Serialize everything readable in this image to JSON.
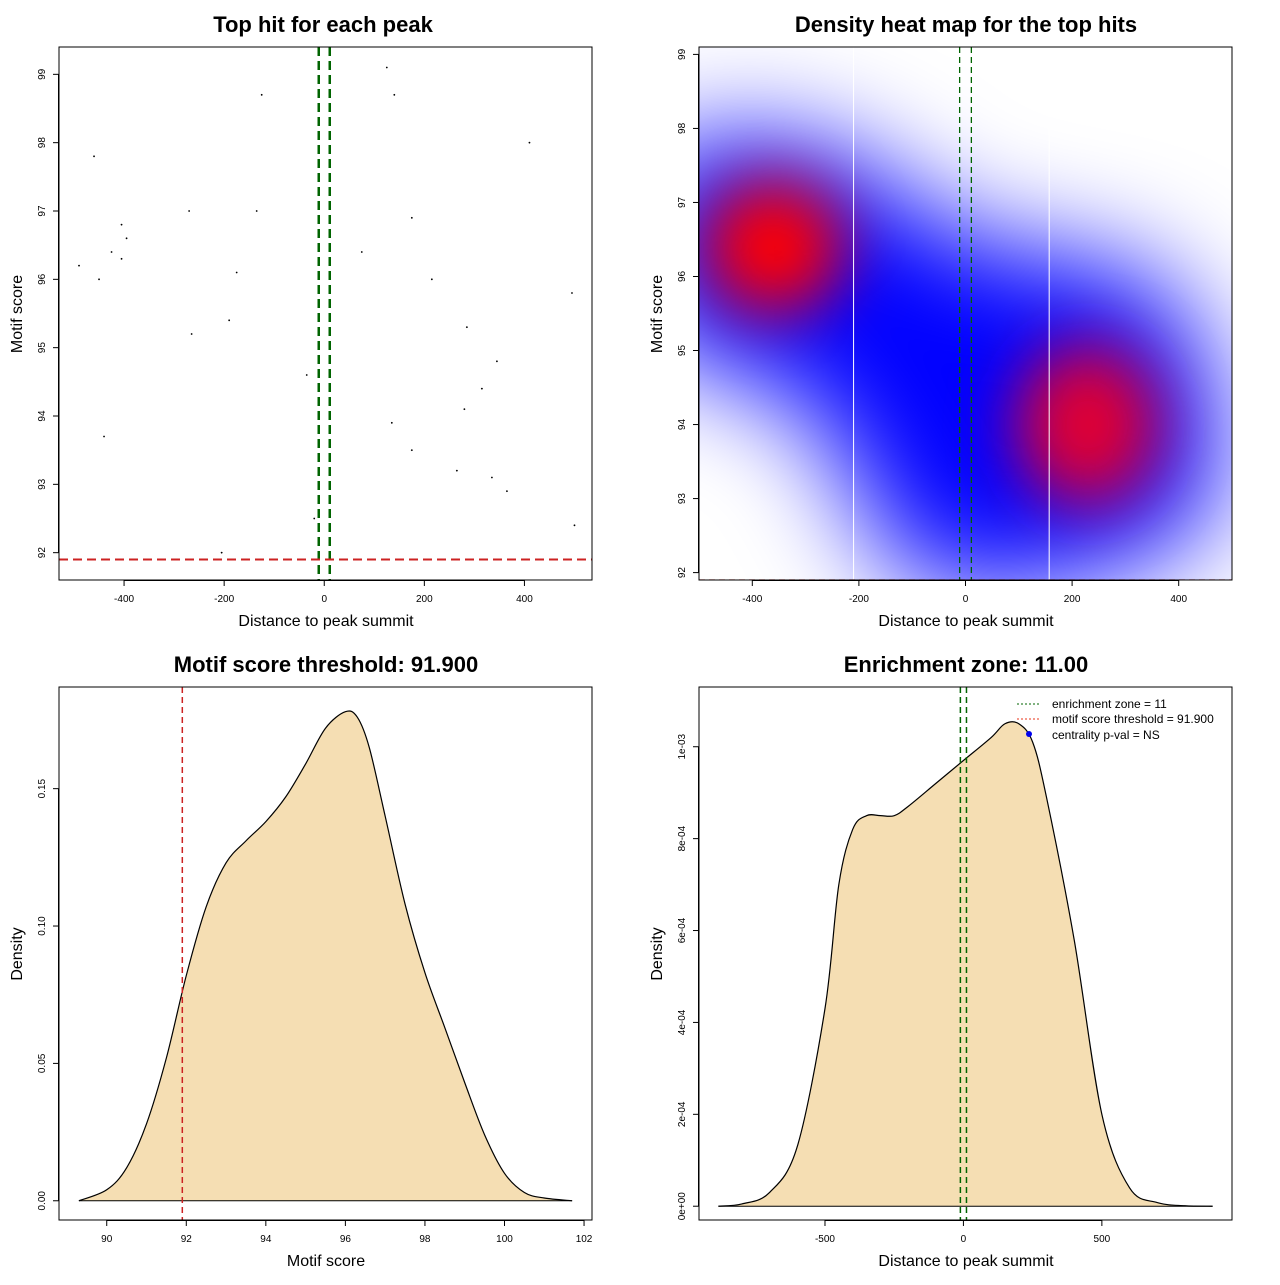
{
  "chart_data": [
    {
      "id": "scatter",
      "type": "scatter",
      "title": "Top hit for each peak",
      "xlabel": "Distance to peak summit",
      "ylabel": "Motif score",
      "xlim": [
        -530,
        535
      ],
      "ylim": [
        91.6,
        99.4
      ],
      "xticks": [
        -400,
        -200,
        0,
        200,
        400
      ],
      "xtick_labels": [
        "-400",
        "-200",
        "0",
        "200",
        "400"
      ],
      "yticks": [
        92,
        93,
        94,
        95,
        96,
        97,
        98,
        99
      ],
      "ytick_labels": [
        "92",
        "93",
        "94",
        "95",
        "96",
        "97",
        "98",
        "99"
      ],
      "points": [
        {
          "x": 125,
          "y": 99.1
        },
        {
          "x": -125,
          "y": 98.7
        },
        {
          "x": 140,
          "y": 98.7
        },
        {
          "x": -460,
          "y": 97.8
        },
        {
          "x": 410,
          "y": 98.0
        },
        {
          "x": -270,
          "y": 97.0
        },
        {
          "x": -135,
          "y": 97.0
        },
        {
          "x": 175,
          "y": 96.9
        },
        {
          "x": -405,
          "y": 96.8
        },
        {
          "x": -395,
          "y": 96.6
        },
        {
          "x": -425,
          "y": 96.4
        },
        {
          "x": -405,
          "y": 96.3
        },
        {
          "x": 75,
          "y": 96.4
        },
        {
          "x": -490,
          "y": 96.2
        },
        {
          "x": -175,
          "y": 96.1
        },
        {
          "x": -450,
          "y": 96.0
        },
        {
          "x": 215,
          "y": 96.0
        },
        {
          "x": 495,
          "y": 95.8
        },
        {
          "x": -190,
          "y": 95.4
        },
        {
          "x": 285,
          "y": 95.3
        },
        {
          "x": -265,
          "y": 95.2
        },
        {
          "x": 345,
          "y": 94.8
        },
        {
          "x": -35,
          "y": 94.6
        },
        {
          "x": 315,
          "y": 94.4
        },
        {
          "x": 280,
          "y": 94.1
        },
        {
          "x": 135,
          "y": 93.9
        },
        {
          "x": -440,
          "y": 93.7
        },
        {
          "x": 175,
          "y": 93.5
        },
        {
          "x": 265,
          "y": 93.2
        },
        {
          "x": 335,
          "y": 93.1
        },
        {
          "x": 365,
          "y": 92.9
        },
        {
          "x": -20,
          "y": 92.5
        },
        {
          "x": 500,
          "y": 92.4
        },
        {
          "x": -205,
          "y": 92.0
        }
      ],
      "vlines": [
        -11,
        11
      ],
      "hline": 91.9
    },
    {
      "id": "heatmap",
      "type": "heatmap",
      "title": "Density heat map for the top hits",
      "xlabel": "Distance to peak summit",
      "ylabel": "Motif score",
      "xlim": [
        -500,
        500
      ],
      "ylim": [
        91.9,
        99.1
      ],
      "xticks": [
        -400,
        -200,
        0,
        200,
        400
      ],
      "xtick_labels": [
        "-400",
        "-200",
        "0",
        "200",
        "400"
      ],
      "yticks": [
        92,
        93,
        94,
        95,
        96,
        97,
        98,
        99
      ],
      "ytick_labels": [
        "92",
        "93",
        "94",
        "95",
        "96",
        "97",
        "98",
        "99"
      ],
      "hotspots": [
        {
          "x": -360,
          "y": 96.4,
          "level": "high"
        },
        {
          "x": 230,
          "y": 94.0,
          "level": "high"
        }
      ],
      "white_vlines": [
        -210,
        157
      ],
      "vlines": [
        -11,
        11
      ],
      "hline": 91.9
    },
    {
      "id": "score-density",
      "type": "area",
      "title": "Motif score threshold: 91.900",
      "xlabel": "Motif score",
      "ylabel": "Density",
      "xlim": [
        88.8,
        102.2
      ],
      "ylim": [
        -0.007,
        0.187
      ],
      "xticks": [
        90,
        92,
        94,
        96,
        98,
        100,
        102
      ],
      "xtick_labels": [
        "90",
        "92",
        "94",
        "96",
        "98",
        "100",
        "102"
      ],
      "yticks": [
        0,
        0.05,
        0.1,
        0.15
      ],
      "ytick_labels": [
        "0.00",
        "0.05",
        "0.10",
        "0.15"
      ],
      "x": [
        89.3,
        90.0,
        90.5,
        91.0,
        91.5,
        92.0,
        92.5,
        93.0,
        93.5,
        94.0,
        94.5,
        95.0,
        95.5,
        96.0,
        96.3,
        96.6,
        97.0,
        97.5,
        98.0,
        98.5,
        99.0,
        99.5,
        100.0,
        100.5,
        101.0,
        101.7
      ],
      "y": [
        0.0,
        0.004,
        0.012,
        0.028,
        0.052,
        0.082,
        0.107,
        0.123,
        0.131,
        0.138,
        0.147,
        0.159,
        0.172,
        0.178,
        0.176,
        0.165,
        0.14,
        0.108,
        0.083,
        0.063,
        0.043,
        0.024,
        0.01,
        0.003,
        0.001,
        0.0
      ],
      "threshold_line": 91.9
    },
    {
      "id": "distance-density",
      "type": "area",
      "title": "Enrichment zone: 11.00",
      "xlabel": "Distance to peak summit",
      "ylabel": "Density",
      "xlim": [
        -955,
        970
      ],
      "ylim": [
        -3e-05,
        0.00113
      ],
      "xticks": [
        -500,
        0,
        500
      ],
      "xtick_labels": [
        "-500",
        "0",
        "500"
      ],
      "yticks": [
        0,
        0.0002,
        0.0004,
        0.0006,
        0.0008,
        0.001
      ],
      "ytick_labels": [
        "0e+00",
        "2e-04",
        "4e-04",
        "6e-04",
        "8e-04",
        "1e-03"
      ],
      "x": [
        -885,
        -800,
        -700,
        -600,
        -500,
        -450,
        -400,
        -350,
        -300,
        -250,
        -200,
        -100,
        0,
        100,
        150,
        200,
        250,
        300,
        400,
        500,
        600,
        700,
        800,
        900
      ],
      "y": [
        0.0,
        5e-06,
        3e-05,
        0.00013,
        0.00043,
        0.0007,
        0.00082,
        0.00085,
        0.00085,
        0.00085,
        0.00087,
        0.00092,
        0.00097,
        0.00102,
        0.00105,
        0.00105,
        0.00101,
        0.00089,
        0.00058,
        0.0002,
        4e-05,
        8e-06,
        1e-06,
        0.0
      ],
      "vlines": [
        -11,
        11
      ],
      "legend": [
        {
          "label": "enrichment zone = 11",
          "style": "dotted",
          "color": "#006400"
        },
        {
          "label": "motif score threshold = 91.900",
          "style": "dotted",
          "color": "#e8331a"
        },
        {
          "label": "centrality p-val = NS",
          "style": "point",
          "color": "#0000ee"
        }
      ],
      "legend_position": "top-right"
    }
  ],
  "colors": {
    "green": "#006400",
    "red": "#cc2222",
    "fill": "#f5deb3",
    "heat_low": "#ffffff",
    "heat_mid": "#0000ff",
    "heat_high": "#ff0000"
  }
}
